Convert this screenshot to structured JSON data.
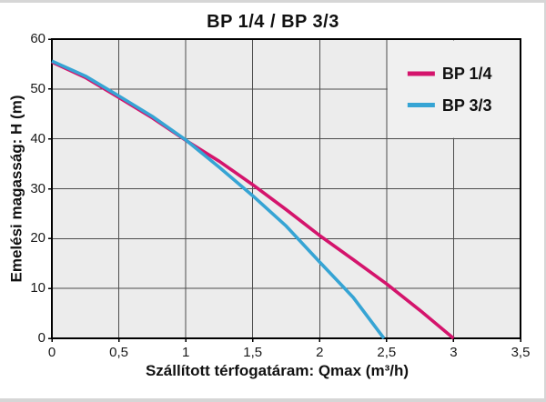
{
  "figure": {
    "title": "BP 1/4  /  BP 3/3"
  },
  "chart_data": {
    "type": "line",
    "title": "BP 1/4  /  BP 3/3",
    "xlabel": "Szállított térfogatáram: Qmax (m³/h)",
    "ylabel": "Emelési magasság: H (m)",
    "xlim": [
      0,
      3.5
    ],
    "ylim": [
      0,
      60
    ],
    "x_ticks": [
      0,
      0.5,
      1,
      1.5,
      2,
      2.5,
      3,
      3.5
    ],
    "x_tick_labels": [
      "0",
      "0,5",
      "1",
      "1,5",
      "2",
      "2,5",
      "3",
      "3,5"
    ],
    "y_ticks": [
      0,
      10,
      20,
      30,
      40,
      50,
      60
    ],
    "y_tick_labels": [
      "0",
      "10",
      "20",
      "30",
      "40",
      "50",
      "60"
    ],
    "grid": true,
    "legend_position": "top-right",
    "colors": {
      "plot_background": "#ececec",
      "legend_background": "#f0f0f0",
      "grid": "#4d4d4d",
      "border": "#000000",
      "series_bp14": "#d4146c",
      "series_bp33": "#36a4d4"
    },
    "series": [
      {
        "name": "BP 1/4",
        "color": "#d4146c",
        "points": [
          [
            0,
            55.4
          ],
          [
            0.25,
            52.3
          ],
          [
            0.5,
            48.3
          ],
          [
            0.75,
            44.2
          ],
          [
            1,
            39.7
          ],
          [
            1.25,
            35.5
          ],
          [
            1.5,
            30.8
          ],
          [
            1.75,
            25.8
          ],
          [
            2,
            20.6
          ],
          [
            2.25,
            15.8
          ],
          [
            2.5,
            10.9
          ],
          [
            2.75,
            5.6
          ],
          [
            3,
            0
          ]
        ]
      },
      {
        "name": "BP 3/3",
        "color": "#36a4d4",
        "points": [
          [
            0,
            55.6
          ],
          [
            0.25,
            52.6
          ],
          [
            0.5,
            48.6
          ],
          [
            0.75,
            44.5
          ],
          [
            1,
            39.8
          ],
          [
            1.25,
            34.3
          ],
          [
            1.5,
            28.6
          ],
          [
            1.75,
            22.5
          ],
          [
            2,
            15.3
          ],
          [
            2.25,
            8.2
          ],
          [
            2.48,
            0
          ]
        ]
      }
    ]
  }
}
